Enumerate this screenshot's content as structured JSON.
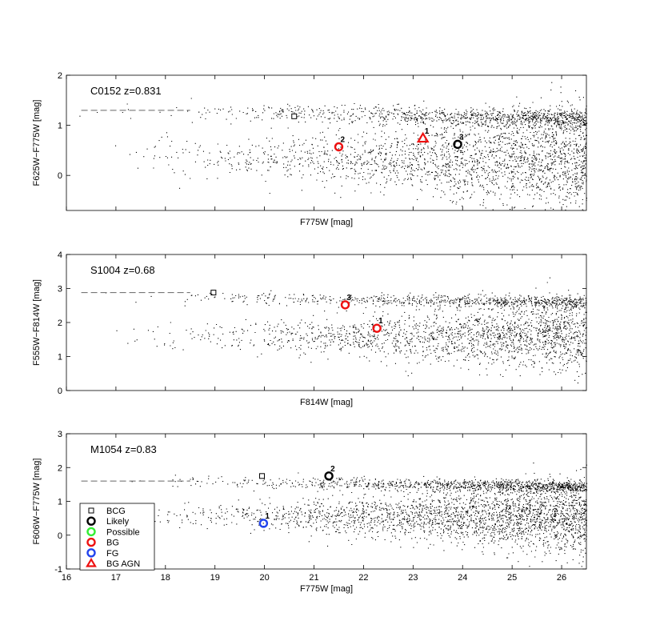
{
  "chart_data": [
    {
      "type": "scatter",
      "label": "C0152 z=0.831",
      "xlabel": "F775W [mag]",
      "ylabel": "F625W−F775W [mag]",
      "xlim": [
        16,
        26.5
      ],
      "ylim": [
        -0.7,
        2
      ],
      "yticks": [
        0,
        1,
        2
      ],
      "xticks": [
        16,
        17,
        18,
        19,
        20,
        21,
        22,
        23,
        24,
        25,
        26
      ],
      "show_xtick_labels": false,
      "dashed_line": {
        "x": [
          16.3,
          18.5
        ],
        "y": 1.3
      },
      "background": {
        "seed": 11,
        "count": 3200,
        "x_range": [
          16,
          26.5
        ],
        "red_sequence": 1.25,
        "blue_center": 0.1
      },
      "markers": [
        {
          "kind": "BCG",
          "x": 20.6,
          "y": 1.18,
          "label": ""
        },
        {
          "kind": "BG",
          "x": 21.5,
          "y": 0.57,
          "label": "2"
        },
        {
          "kind": "BG AGN",
          "x": 23.2,
          "y": 0.74,
          "label": "1"
        },
        {
          "kind": "Likely",
          "x": 23.9,
          "y": 0.62,
          "label": "3"
        }
      ]
    },
    {
      "type": "scatter",
      "label": "S1004 z=0.68",
      "xlabel": "F814W [mag]",
      "ylabel": "F555W−F814W [mag]",
      "xlim": [
        16,
        26.5
      ],
      "ylim": [
        0,
        4
      ],
      "yticks": [
        0,
        1,
        2,
        3,
        4
      ],
      "xticks": [
        16,
        17,
        18,
        19,
        20,
        21,
        22,
        23,
        24,
        25,
        26
      ],
      "show_xtick_labels": false,
      "dashed_line": {
        "x": [
          16.3,
          18.5
        ],
        "y": 2.88
      },
      "background": {
        "seed": 29,
        "count": 2600,
        "x_range": [
          16,
          26.5
        ],
        "red_sequence": 2.7,
        "blue_center": 1.3
      },
      "markers": [
        {
          "kind": "BCG",
          "x": 18.97,
          "y": 2.88,
          "label": ""
        },
        {
          "kind": "BG",
          "x": 21.63,
          "y": 2.52,
          "label": "3"
        },
        {
          "kind": "BG",
          "x": 22.27,
          "y": 1.83,
          "label": "1"
        }
      ]
    },
    {
      "type": "scatter",
      "label": "M1054 z=0.83",
      "xlabel": "F775W [mag]",
      "ylabel": "F606W−F775W [mag]",
      "xlim": [
        16,
        26.5
      ],
      "ylim": [
        -1,
        3
      ],
      "yticks": [
        -1,
        0,
        1,
        2,
        3
      ],
      "xticks": [
        16,
        17,
        18,
        19,
        20,
        21,
        22,
        23,
        24,
        25,
        26
      ],
      "show_xtick_labels": true,
      "dashed_line": {
        "x": [
          16.3,
          18.5
        ],
        "y": 1.6
      },
      "background": {
        "seed": 47,
        "count": 3600,
        "x_range": [
          16,
          26.5
        ],
        "red_sequence": 1.55,
        "blue_center": 0.3
      },
      "markers": [
        {
          "kind": "BCG",
          "x": 19.95,
          "y": 1.75,
          "label": ""
        },
        {
          "kind": "Likely",
          "x": 21.3,
          "y": 1.75,
          "label": "2"
        },
        {
          "kind": "FG",
          "x": 19.98,
          "y": 0.35,
          "label": "1"
        }
      ]
    }
  ],
  "legend": {
    "placement": "bottom-left of third panel",
    "entries": [
      {
        "kind": "BCG",
        "text": "BCG",
        "shape": "square",
        "color": "#000000"
      },
      {
        "kind": "Likely",
        "text": "Likely",
        "shape": "circle",
        "color": "#000000"
      },
      {
        "kind": "Possible",
        "text": "Possible",
        "shape": "circle",
        "color": "#33ee33"
      },
      {
        "kind": "BG",
        "text": "BG",
        "shape": "circle",
        "color": "#ee1111"
      },
      {
        "kind": "FG",
        "text": "FG",
        "shape": "circle",
        "color": "#2244ee"
      },
      {
        "kind": "BG AGN",
        "text": "BG AGN",
        "shape": "triangle",
        "color": "#ee1111"
      }
    ]
  }
}
